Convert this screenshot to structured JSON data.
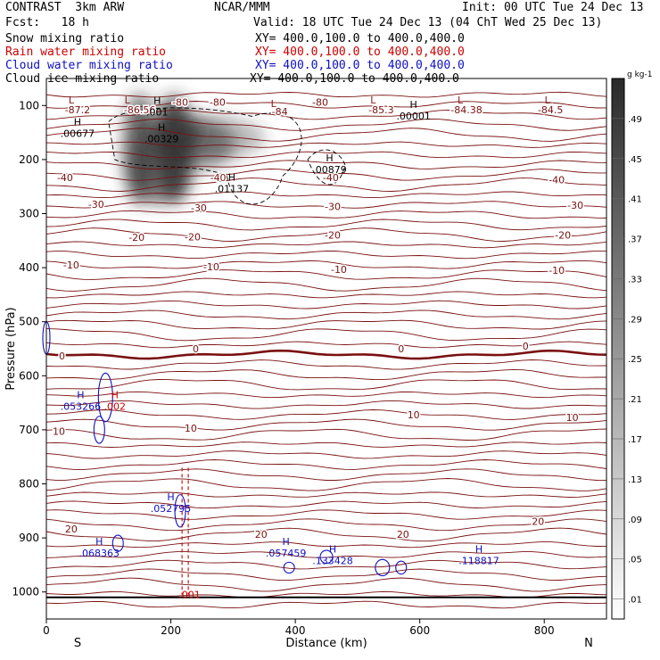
{
  "header": {
    "model": "CONTRAST  3km ARW",
    "center": "NCAR/MMM",
    "init": "Init: 00 UTC Tue 24 Dec 13",
    "fcst": "Fcst:   18 h",
    "valid": "Valid: 18 UTC Tue 24 Dec 13 (04 ChT Wed 25 Dec 13)",
    "fields": [
      {
        "name": "Snow mixing ratio",
        "xy": "XY= 400.0,100.0 to 400.0,400.0",
        "color": "#000000"
      },
      {
        "name": "Rain water mixing ratio",
        "xy": "XY= 400.0,100.0 to 400.0,400.0",
        "color": "#cc0000"
      },
      {
        "name": "Cloud water mixing ratio",
        "xy": "XY= 400.0,100.0 to 400.0,400.0",
        "color": "#1010c0"
      },
      {
        "name": "Cloud ice mixing ratio",
        "xy": "XY= 400.0,100.0 to 400.0,400.0",
        "color": "#000000"
      }
    ]
  },
  "chart_data": {
    "type": "cross-section",
    "xlabel": "Distance (km)",
    "ylabel": "Pressure (hPa)",
    "xlim": [
      0,
      900
    ],
    "ylim": [
      1050,
      50
    ],
    "x_ticks": [
      0,
      200,
      400,
      600,
      800
    ],
    "y_ticks": [
      100,
      200,
      300,
      400,
      500,
      600,
      700,
      800,
      900,
      1000
    ],
    "left_end": "S",
    "right_end": "N",
    "colorbar": {
      "unit": "g kg-1",
      "labels": [
        ".01",
        ".05",
        ".09",
        ".13",
        ".17",
        ".21",
        ".25",
        ".29",
        ".33",
        ".37",
        ".41",
        ".45",
        ".49"
      ]
    },
    "temperature_labels": [
      {
        "text": "-87.2",
        "x": 50,
        "p": 108
      },
      {
        "text": "-86.56",
        "x": 150,
        "p": 108
      },
      {
        "text": "-80",
        "x": 215,
        "p": 94
      },
      {
        "text": "-80",
        "x": 275,
        "p": 94
      },
      {
        "text": "-84",
        "x": 375,
        "p": 111
      },
      {
        "text": "-80",
        "x": 440,
        "p": 94
      },
      {
        "text": "-85.3",
        "x": 538,
        "p": 108
      },
      {
        "text": "-84.38",
        "x": 675,
        "p": 108
      },
      {
        "text": "-84.5",
        "x": 810,
        "p": 108
      },
      {
        "text": "-40",
        "x": 30,
        "p": 233
      },
      {
        "text": "-40",
        "x": 276,
        "p": 233
      },
      {
        "text": "-40",
        "x": 457,
        "p": 233
      },
      {
        "text": "-40",
        "x": 820,
        "p": 237
      },
      {
        "text": "-30",
        "x": 80,
        "p": 283
      },
      {
        "text": "-30",
        "x": 245,
        "p": 289
      },
      {
        "text": "-30",
        "x": 460,
        "p": 287
      },
      {
        "text": "-30",
        "x": 850,
        "p": 284
      },
      {
        "text": "-20",
        "x": 145,
        "p": 344
      },
      {
        "text": "-20",
        "x": 235,
        "p": 343
      },
      {
        "text": "-20",
        "x": 460,
        "p": 340
      },
      {
        "text": "-20",
        "x": 830,
        "p": 340
      },
      {
        "text": "-10",
        "x": 40,
        "p": 395
      },
      {
        "text": "-10",
        "x": 265,
        "p": 398
      },
      {
        "text": "-10",
        "x": 470,
        "p": 403
      },
      {
        "text": "-10",
        "x": 820,
        "p": 405
      },
      {
        "text": "0",
        "x": 25,
        "p": 563
      },
      {
        "text": "0",
        "x": 240,
        "p": 550
      },
      {
        "text": "0",
        "x": 570,
        "p": 550
      },
      {
        "text": "0",
        "x": 770,
        "p": 545
      },
      {
        "text": "10",
        "x": 20,
        "p": 703
      },
      {
        "text": "10",
        "x": 232,
        "p": 697
      },
      {
        "text": "10",
        "x": 590,
        "p": 672
      },
      {
        "text": "10",
        "x": 845,
        "p": 677
      },
      {
        "text": "20",
        "x": 40,
        "p": 883
      },
      {
        "text": "20",
        "x": 345,
        "p": 893
      },
      {
        "text": "20",
        "x": 573,
        "p": 893
      },
      {
        "text": "20",
        "x": 790,
        "p": 869
      }
    ],
    "extrema": [
      {
        "kind": "L",
        "x": 40,
        "p": 90,
        "color": "#8b1a1a"
      },
      {
        "kind": "L",
        "x": 130,
        "p": 90,
        "color": "#8b1a1a"
      },
      {
        "kind": "L",
        "x": 365,
        "p": 96,
        "color": "#8b1a1a"
      },
      {
        "kind": "L",
        "x": 525,
        "p": 90,
        "color": "#8b1a1a"
      },
      {
        "kind": "L",
        "x": 665,
        "p": 90,
        "color": "#8b1a1a"
      },
      {
        "kind": "L",
        "x": 805,
        "p": 90,
        "color": "#8b1a1a"
      }
    ],
    "snow_maxima": [
      {
        "kind": "H",
        "value": ".001",
        "x": 178,
        "p": 110,
        "color": "#000000"
      },
      {
        "kind": "H",
        "value": ".00677",
        "x": 50,
        "p": 150,
        "color": "#000000"
      },
      {
        "kind": "H",
        "value": ".00329",
        "x": 185,
        "p": 160,
        "color": "#000000"
      },
      {
        "kind": "H",
        "value": ".00879",
        "x": 455,
        "p": 217,
        "color": "#000000"
      },
      {
        "kind": "H",
        "value": ".01137",
        "x": 298,
        "p": 252,
        "color": "#000000"
      },
      {
        "kind": "H",
        "value": ".00001",
        "x": 590,
        "p": 118,
        "color": "#000000"
      }
    ],
    "cloud_water_maxima": [
      {
        "kind": "H",
        "value": ".053266",
        "x": 55,
        "p": 655,
        "color": "#1010c0"
      },
      {
        "kind": "H",
        "value": ".052795",
        "x": 200,
        "p": 844,
        "color": "#1010c0"
      },
      {
        "kind": "H",
        "value": ".068363",
        "x": 85,
        "p": 926,
        "color": "#1010c0"
      },
      {
        "kind": "H",
        "value": ".057459",
        "x": 385,
        "p": 926,
        "color": "#1010c0"
      },
      {
        "kind": "H",
        "value": ".133428",
        "x": 460,
        "p": 940,
        "color": "#1010c0"
      },
      {
        "kind": "H",
        "value": ".118817",
        "x": 695,
        "p": 940,
        "color": "#1010c0"
      }
    ],
    "rain_maxima": [
      {
        "kind": "H",
        "value": ".002",
        "x": 110,
        "p": 655,
        "color": "#cc0000"
      },
      {
        "kind": "",
        "value": ".001",
        "x": 230,
        "p": 1003,
        "color": "#cc0000"
      }
    ]
  }
}
